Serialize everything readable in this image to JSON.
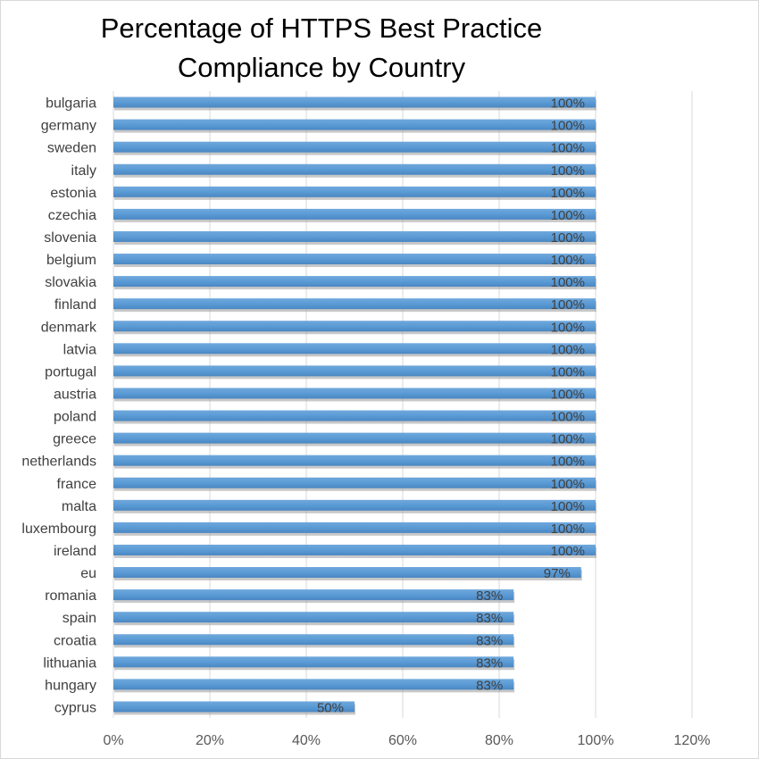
{
  "chart_data": {
    "type": "bar",
    "orientation": "horizontal",
    "title_lines": [
      "Percentage of HTTPS Best Practice",
      "Compliance by Country"
    ],
    "categories": [
      "bulgaria",
      "germany",
      "sweden",
      "italy",
      "estonia",
      "czechia",
      "slovenia",
      "belgium",
      "slovakia",
      "finland",
      "denmark",
      "latvia",
      "portugal",
      "austria",
      "poland",
      "greece",
      "netherlands",
      "france",
      "malta",
      "luxembourg",
      "ireland",
      "eu",
      "romania",
      "spain",
      "croatia",
      "lithuania",
      "hungary",
      "cyprus"
    ],
    "values": [
      100,
      100,
      100,
      100,
      100,
      100,
      100,
      100,
      100,
      100,
      100,
      100,
      100,
      100,
      100,
      100,
      100,
      100,
      100,
      100,
      100,
      97,
      83,
      83,
      83,
      83,
      83,
      50
    ],
    "data_labels": [
      "100%",
      "100%",
      "100%",
      "100%",
      "100%",
      "100%",
      "100%",
      "100%",
      "100%",
      "100%",
      "100%",
      "100%",
      "100%",
      "100%",
      "100%",
      "100%",
      "100%",
      "100%",
      "100%",
      "100%",
      "100%",
      "97%",
      "83%",
      "83%",
      "83%",
      "83%",
      "83%",
      "50%"
    ],
    "x_ticks": [
      "0%",
      "20%",
      "40%",
      "60%",
      "80%",
      "100%",
      "120%"
    ],
    "xlim": [
      0,
      120
    ],
    "grid": "vertical",
    "legend": "none",
    "bar_color": "#5b9bd5",
    "grid_color": "#d9d9d9"
  }
}
